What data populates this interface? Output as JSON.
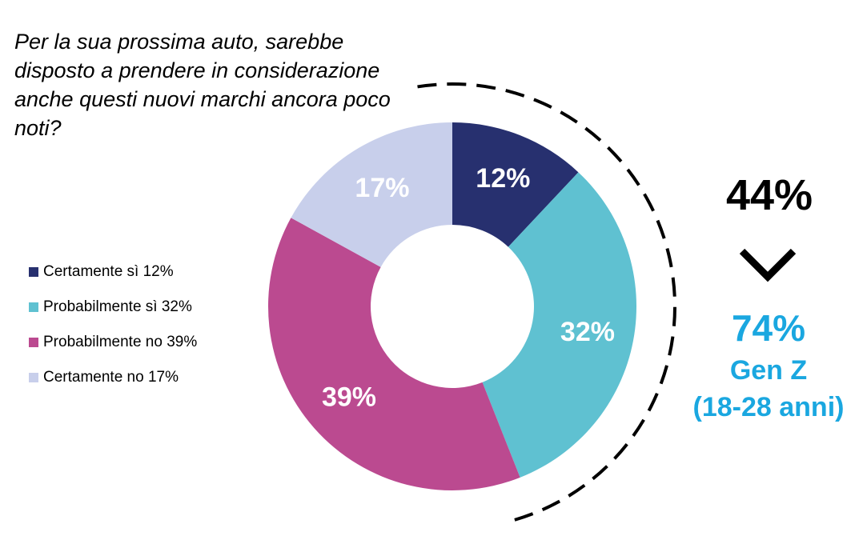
{
  "question": "Per la sua prossima auto, sarebbe disposto a prendere in considerazione anche questi nuovi marchi ancora poco noti?",
  "chart_data": {
    "type": "pie",
    "variant": "donut",
    "categories": [
      "Certamente sì",
      "Probabilmente sì",
      "Probabilmente no",
      "Certamente no"
    ],
    "values": [
      12,
      32,
      39,
      17
    ],
    "data_labels": [
      "12%",
      "32%",
      "39%",
      "17%"
    ],
    "colors": [
      "#27306f",
      "#5fc1d1",
      "#bb4a90",
      "#c8cfeb"
    ],
    "legend_position": "left",
    "legend": [
      "Certamente sì 12%",
      "Probabilmente sì 32%",
      "Probabilmente no 39%",
      "Certamente no 17%"
    ]
  },
  "callout": {
    "total": "44%",
    "genz_value": "74%",
    "genz_label": "Gen Z",
    "genz_range": "(18-28 anni)"
  }
}
